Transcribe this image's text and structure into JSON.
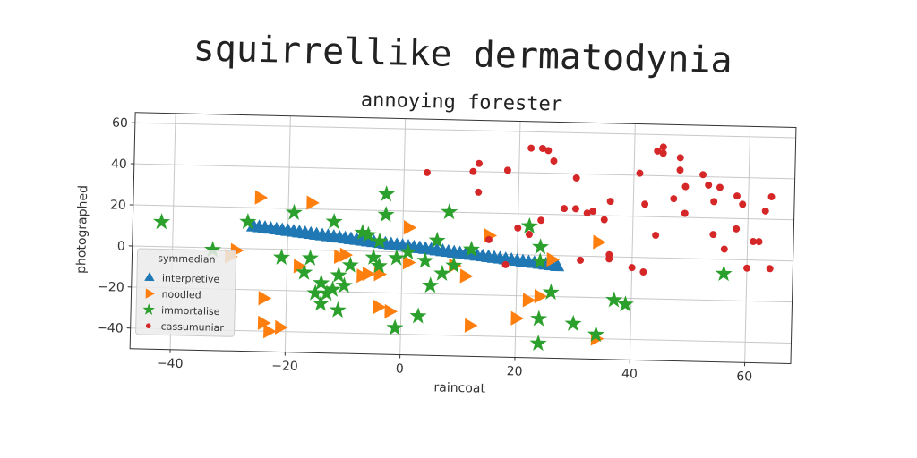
{
  "chart_data": {
    "type": "scatter",
    "title": "squirrellike dermatodynia",
    "subtitle": "annoying forester",
    "xlabel": "raincoat",
    "ylabel": "photographed",
    "xlim": [
      -47,
      68
    ],
    "ylim": [
      -50,
      65
    ],
    "xticks": [
      -40,
      -20,
      0,
      20,
      40,
      60
    ],
    "yticks": [
      -40,
      -20,
      0,
      20,
      40,
      60
    ],
    "grid": true,
    "legend": {
      "title": "symmedian",
      "placement": "lower-left"
    },
    "colors": {
      "interpretive": "#1f77b4",
      "noodled": "#ff7f0e",
      "immortalise": "#2ca02c",
      "cassumuniar": "#d62728"
    },
    "series": [
      {
        "name": "interpretive",
        "marker": "triangle-up",
        "x": [
          -26,
          -25,
          -24,
          -23,
          -22,
          -21,
          -20,
          -19,
          -18,
          -17,
          -16,
          -15,
          -14,
          -13,
          -12,
          -11,
          -10,
          -9,
          -8,
          -7,
          -6,
          -5,
          -4,
          -3,
          -2,
          -1,
          0,
          1,
          2,
          3,
          4,
          5,
          6,
          7,
          8,
          9,
          10,
          11,
          12,
          13,
          14,
          15,
          16,
          17,
          18,
          19,
          20,
          21,
          22,
          23,
          24,
          25,
          26,
          27
        ],
        "y": [
          10.7,
          10.4,
          10.1,
          9.8,
          9.5,
          9.2,
          8.9,
          8.6,
          8.3,
          8.0,
          7.7,
          7.4,
          7.1,
          6.8,
          6.5,
          6.2,
          5.9,
          5.6,
          5.3,
          5.0,
          4.7,
          4.4,
          4.1,
          3.8,
          3.5,
          3.2,
          2.9,
          2.6,
          2.3,
          2.0,
          1.7,
          1.4,
          1.1,
          0.8,
          0.5,
          0.2,
          -0.1,
          -0.4,
          -0.7,
          -1.0,
          -1.3,
          -1.6,
          -1.9,
          -2.2,
          -2.5,
          -2.8,
          -3.1,
          -3.4,
          -3.7,
          -4.0,
          -4.3,
          -4.6,
          -4.9,
          -5.2
        ]
      },
      {
        "name": "noodled",
        "marker": "triangle-right",
        "x": [
          -25,
          -16,
          -30,
          -11,
          -29,
          -10,
          -24,
          -4,
          9,
          1,
          11,
          -21,
          -4,
          -18,
          -6,
          -7,
          -24,
          -2,
          -23,
          12,
          22,
          24,
          15,
          34,
          34,
          1,
          20,
          26
        ],
        "y": [
          25,
          23,
          -4,
          -3,
          -1,
          -2,
          -24,
          -11,
          -6,
          -5,
          -11,
          -38,
          -27,
          -8,
          -11,
          -12,
          -36,
          -29,
          -40,
          -35,
          -22,
          -20,
          9,
          7,
          -40,
          12,
          -31,
          -2
        ]
      },
      {
        "name": "immortalise",
        "marker": "star",
        "x": [
          -42,
          -33,
          -27,
          -21,
          -19,
          -17,
          -16,
          -12,
          -11,
          -12,
          -14,
          -13,
          -9,
          -6,
          -3,
          -3,
          -4,
          -5,
          -1,
          1,
          3,
          5,
          6,
          7,
          8,
          9,
          12,
          22,
          24,
          24,
          26,
          24,
          30,
          34,
          37,
          39,
          -7,
          -11,
          -1,
          -15,
          -10,
          -4,
          4,
          -14,
          24,
          56
        ],
        "y": [
          12,
          -1,
          13,
          -4,
          18,
          -11,
          -4,
          14,
          -12,
          -19,
          -16,
          -21,
          -7,
          8,
          28,
          18,
          -7,
          -3,
          -3,
          0,
          -31,
          -16,
          6,
          -10,
          20,
          -6,
          2,
          14,
          -3,
          -31,
          -18,
          -43,
          -33,
          -38,
          -21,
          -23,
          9,
          -29,
          -37,
          -21,
          -17,
          5,
          -4,
          -26,
          4,
          -7
        ]
      },
      {
        "name": "cassumuniar",
        "marker": "circle",
        "x": [
          4,
          13,
          12,
          13,
          15,
          18,
          20,
          22,
          24,
          25,
          26,
          30,
          28,
          30,
          32,
          33,
          35,
          36,
          36,
          40,
          41,
          42,
          42,
          44,
          45,
          45,
          47,
          48,
          48,
          49,
          49,
          52,
          53,
          54,
          54,
          55,
          56,
          58,
          59,
          60,
          61,
          62,
          63,
          64,
          64,
          58,
          44,
          36,
          31,
          24,
          22,
          18
        ],
        "y": [
          39,
          44,
          40,
          30,
          7,
          41,
          13,
          52,
          52,
          51,
          46,
          38,
          23,
          23,
          21,
          22,
          18,
          27,
          1,
          -5,
          41,
          26,
          -7,
          52,
          54,
          51,
          29,
          43,
          49,
          35,
          22,
          41,
          36,
          12,
          28,
          35,
          5,
          31,
          27,
          -4,
          9,
          9,
          24,
          31,
          -4,
          15,
          11,
          -1,
          -2,
          17,
          10,
          -5
        ]
      }
    ]
  }
}
